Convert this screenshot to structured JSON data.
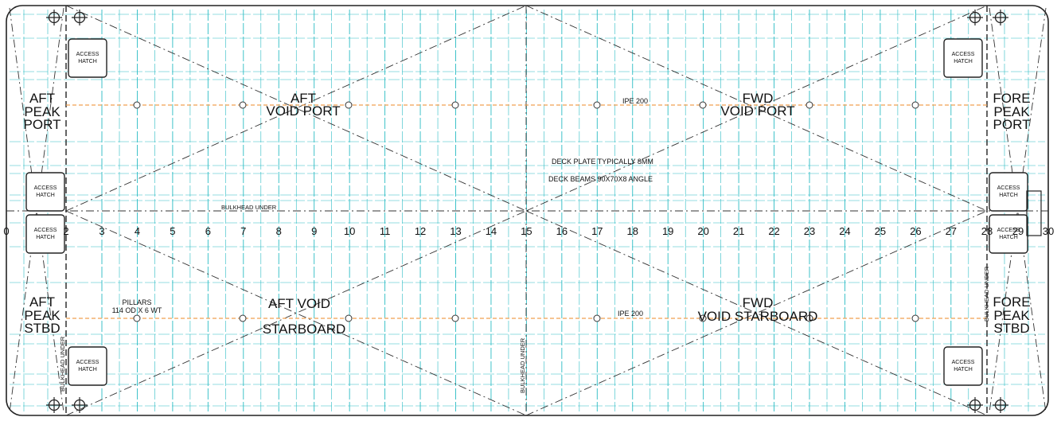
{
  "zones": {
    "aft_peak_port": [
      "AFT",
      "PEAK",
      "PORT"
    ],
    "aft_void_port": [
      "AFT",
      "VOID  PORT"
    ],
    "fwd_void_port": [
      "FWD",
      "VOID PORT"
    ],
    "fore_peak_port": [
      "FORE",
      "PEAK",
      "PORT"
    ],
    "aft_peak_stbd": [
      "AFT",
      "PEAK",
      "STBD"
    ],
    "aft_void_stbd": [
      "AFT  VOID",
      "STARBOARD"
    ],
    "fwd_void_stbd": [
      "FWD",
      "VOID STARBOARD"
    ],
    "fore_peak_stbd": [
      "FORE",
      "PEAK",
      "STBD"
    ]
  },
  "beam_label_port": "IPE 200",
  "beam_label_stbd": "IPE 200",
  "note_deck_plate": "DECK PLATE TYPICALLY 8MM",
  "note_deck_beams": "DECK BEAMS  90X70X8 ANGLE",
  "pillars_label": [
    "PILLARS",
    "114 OD X 6 WT"
  ],
  "bulkhead_label": "BULKHEAD UNDER",
  "hatch_label": [
    "ACCESS",
    "HATCH"
  ],
  "frames": [
    "0",
    "2",
    "3",
    "4",
    "5",
    "6",
    "7",
    "8",
    "9",
    "10",
    "11",
    "12",
    "13",
    "14",
    "15",
    "16",
    "17",
    "18",
    "19",
    "20",
    "21",
    "22",
    "23",
    "24",
    "25",
    "26",
    "27",
    "28",
    "29",
    "30"
  ],
  "colors": {
    "outline": "#222222",
    "grid": "#2bbcc4",
    "beam": "#f0a050",
    "dash": "#333333"
  }
}
